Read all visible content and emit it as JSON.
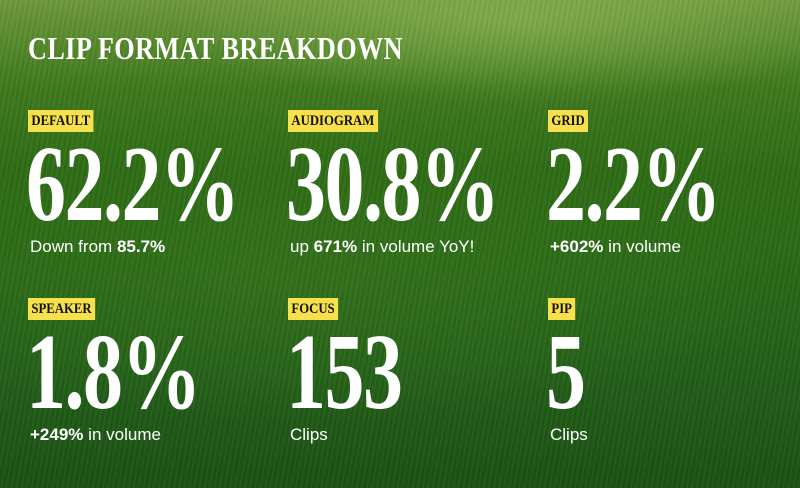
{
  "title": "CLIP FORMAT BREAKDOWN",
  "items": [
    {
      "label": "DEFAULT",
      "value": "62.2%",
      "sub": [
        {
          "text": "Down from"
        },
        {
          "text": "85.7%",
          "bold": true
        }
      ]
    },
    {
      "label": "AUDIOGRAM",
      "value": "30.8%",
      "sub": [
        {
          "text": "up"
        },
        {
          "text": "671%",
          "bold": true
        },
        {
          "text": "in volume YoY!"
        }
      ]
    },
    {
      "label": "GRID",
      "value": "2.2%",
      "sub": [
        {
          "text": "+602%",
          "bold": true
        },
        {
          "text": "in volume"
        }
      ]
    },
    {
      "label": "SPEAKER",
      "value": "1.8%",
      "sub": [
        {
          "text": "+249%",
          "bold": true
        },
        {
          "text": "in volume"
        }
      ]
    },
    {
      "label": "FOCUS",
      "value": "153",
      "sub": [
        {
          "text": "Clips"
        }
      ]
    },
    {
      "label": "PIP",
      "value": "5",
      "sub": [
        {
          "text": "Clips"
        }
      ]
    }
  ]
}
